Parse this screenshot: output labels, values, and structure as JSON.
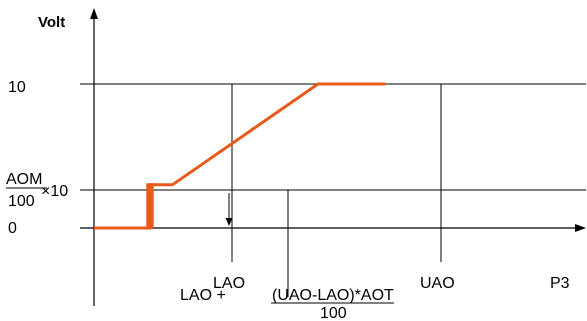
{
  "chart_data": {
    "type": "line",
    "ylabel": "Volt",
    "xlabel": "P3",
    "y_ticks": {
      "zero": "0",
      "ten": "10",
      "aom_numerator": "AOM",
      "aom_denominator": "100",
      "aom_multiplier": "×10"
    },
    "x_ticks": {
      "lao": "LAO",
      "uao": "UAO"
    },
    "annotation": {
      "prefix": "LAO + ",
      "numerator": "(UAO-LAO)*AOT",
      "denominator": "100"
    },
    "series": [
      {
        "color": "#e8591a",
        "points": [
          {
            "x": 0,
            "y": 0
          },
          {
            "x": 1,
            "y": 0
          },
          {
            "x": 1,
            "y": 3
          },
          {
            "x": 1.4,
            "y": 3
          },
          {
            "x": 4,
            "y": 10
          },
          {
            "x": 5.2,
            "y": 10
          }
        ]
      }
    ],
    "hysteresis": {
      "lower_x": 0.96,
      "upper_x": 1.04,
      "level": 3,
      "arrow": "down"
    }
  }
}
